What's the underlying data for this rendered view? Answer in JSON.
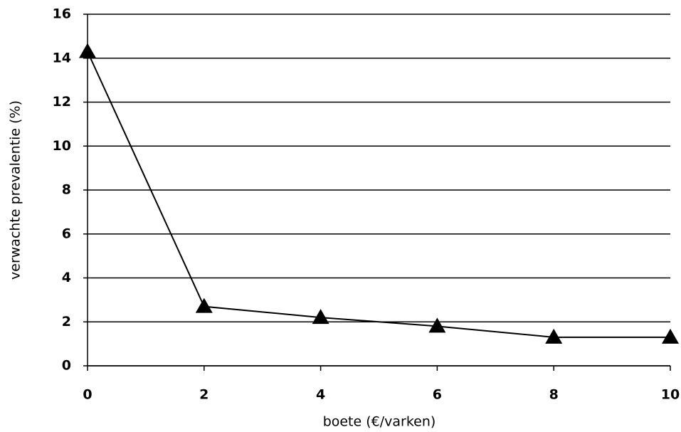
{
  "chart_data": {
    "type": "line",
    "x_label": "boete (€/varken)",
    "y_label": "verwachte prevalentie (%)",
    "x": [
      0,
      2,
      4,
      6,
      8,
      10
    ],
    "series": [
      {
        "values": [
          14.3,
          2.7,
          2.2,
          1.8,
          1.3,
          1.3
        ],
        "color": "#000000",
        "marker": "triangle"
      }
    ],
    "xlim": [
      0,
      10
    ],
    "xticks": [
      0,
      2,
      4,
      6,
      8,
      10
    ],
    "ylim": [
      0,
      16
    ],
    "yticks": [
      0,
      2,
      4,
      6,
      8,
      10,
      12,
      14,
      16
    ],
    "grid": true
  }
}
